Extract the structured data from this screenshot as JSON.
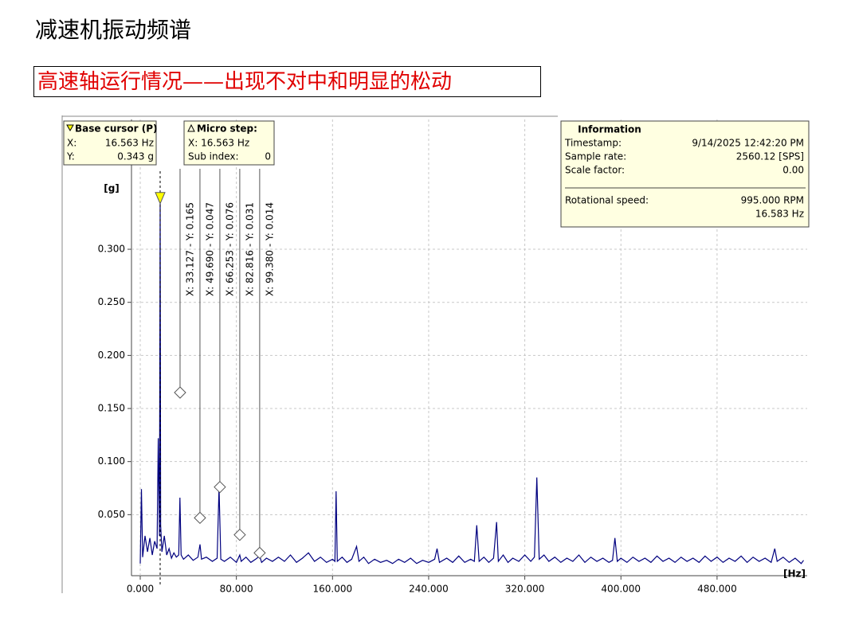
{
  "header": {
    "title": "减速机振动频谱",
    "subtitle": "高速轴运行情况——出现不对中和明显的松动"
  },
  "chart_data": {
    "type": "line",
    "y_label": "[g]",
    "x_label": "[Hz]",
    "xlim": [
      -7.3,
      555
    ],
    "ylim": [
      -0.0075,
      0.4223
    ],
    "xticks": [
      {
        "value": 0,
        "label": "0.000"
      },
      {
        "value": 80,
        "label": "80.000"
      },
      {
        "value": 160,
        "label": "160.000"
      },
      {
        "value": 240,
        "label": "240.000"
      },
      {
        "value": 320,
        "label": "320.000"
      },
      {
        "value": 400,
        "label": "400.000"
      },
      {
        "value": 480,
        "label": "480.000"
      }
    ],
    "yticks": [
      {
        "value": 0.05,
        "label": "0.050"
      },
      {
        "value": 0.1,
        "label": "0.100"
      },
      {
        "value": 0.15,
        "label": "0.150"
      },
      {
        "value": 0.2,
        "label": "0.200"
      },
      {
        "value": 0.25,
        "label": "0.250"
      },
      {
        "value": 0.3,
        "label": "0.300"
      }
    ],
    "grid": true,
    "series": [
      {
        "color": "#00007f",
        "x": [
          0,
          1,
          2,
          4,
          6,
          8,
          10,
          12,
          14,
          15,
          16,
          16.563,
          17,
          18,
          20,
          22,
          24,
          26,
          28,
          30,
          32,
          33,
          34,
          36,
          40,
          44,
          48,
          49.7,
          51,
          55,
          60,
          64,
          65.6,
          67,
          70,
          75,
          80,
          82.8,
          84,
          88,
          92,
          96,
          99.4,
          101,
          105,
          110,
          115,
          120,
          125,
          130,
          135,
          140,
          145,
          150,
          155,
          160,
          162,
          163,
          164,
          168,
          172,
          176,
          180,
          182,
          186,
          190,
          195,
          200,
          205,
          210,
          215,
          220,
          225,
          230,
          235,
          240,
          245,
          247,
          249,
          255,
          260,
          265,
          270,
          275,
          278,
          280,
          282,
          286,
          290,
          294,
          296.5,
          298,
          302,
          306,
          310,
          315,
          320,
          325,
          328,
          330,
          332,
          336,
          340,
          345,
          350,
          355,
          360,
          365,
          370,
          375,
          380,
          385,
          390,
          393,
          395,
          397,
          400,
          405,
          410,
          415,
          420,
          425,
          430,
          435,
          440,
          445,
          450,
          455,
          460,
          465,
          470,
          475,
          480,
          485,
          490,
          495,
          500,
          505,
          510,
          515,
          520,
          525,
          528,
          530,
          535,
          540,
          545,
          550,
          552
        ],
        "values": [
          0.004,
          0.074,
          0.01,
          0.03,
          0.015,
          0.028,
          0.012,
          0.025,
          0.018,
          0.122,
          0.03,
          0.343,
          0.04,
          0.015,
          0.03,
          0.012,
          0.018,
          0.009,
          0.014,
          0.01,
          0.012,
          0.066,
          0.012,
          0.008,
          0.012,
          0.007,
          0.01,
          0.022,
          0.008,
          0.01,
          0.006,
          0.009,
          0.076,
          0.008,
          0.006,
          0.01,
          0.005,
          0.012,
          0.006,
          0.01,
          0.005,
          0.008,
          0.011,
          0.005,
          0.009,
          0.006,
          0.01,
          0.006,
          0.012,
          0.005,
          0.009,
          0.014,
          0.006,
          0.01,
          0.005,
          0.008,
          0.006,
          0.072,
          0.006,
          0.01,
          0.005,
          0.008,
          0.02,
          0.006,
          0.01,
          0.004,
          0.008,
          0.005,
          0.007,
          0.004,
          0.008,
          0.005,
          0.009,
          0.004,
          0.007,
          0.005,
          0.008,
          0.018,
          0.005,
          0.009,
          0.005,
          0.011,
          0.005,
          0.008,
          0.006,
          0.04,
          0.006,
          0.01,
          0.005,
          0.009,
          0.043,
          0.006,
          0.012,
          0.005,
          0.009,
          0.006,
          0.012,
          0.006,
          0.01,
          0.085,
          0.008,
          0.012,
          0.006,
          0.01,
          0.005,
          0.009,
          0.006,
          0.012,
          0.005,
          0.01,
          0.006,
          0.009,
          0.005,
          0.007,
          0.028,
          0.006,
          0.009,
          0.005,
          0.01,
          0.006,
          0.009,
          0.005,
          0.011,
          0.006,
          0.009,
          0.005,
          0.01,
          0.006,
          0.009,
          0.005,
          0.011,
          0.006,
          0.01,
          0.005,
          0.009,
          0.006,
          0.011,
          0.005,
          0.01,
          0.006,
          0.009,
          0.005,
          0.018,
          0.006,
          0.01,
          0.005,
          0.009,
          0.004,
          0.007
        ]
      }
    ],
    "base_cursor": {
      "title": "Base cursor (P)",
      "x_name": "X:",
      "y_name": "Y:",
      "x": {
        "value": 16.563,
        "label": "16.563 Hz"
      },
      "y": {
        "value": 0.343,
        "label": "0.343 g"
      },
      "color": "#ffff00"
    },
    "micro_step": {
      "title": "Micro step:",
      "x_text": "X: 16.563 Hz",
      "sub_index_name": "Sub index:",
      "sub_index": "0"
    },
    "harmonics": [
      {
        "x": 33.127,
        "y": 0.165,
        "label": "X: 33.127 - Y: 0.165"
      },
      {
        "x": 49.69,
        "y": 0.047,
        "label": "X: 49.690 - Y: 0.047"
      },
      {
        "x": 66.253,
        "y": 0.076,
        "label": "X: 66.253 - Y: 0.076"
      },
      {
        "x": 82.816,
        "y": 0.031,
        "label": "X: 82.816 - Y: 0.031"
      },
      {
        "x": 99.38,
        "y": 0.014,
        "label": "X: 99.380 - Y: 0.014"
      }
    ],
    "information": {
      "title": "Information",
      "rows": [
        {
          "name": "Timestamp:",
          "value": "9/14/2025 12:42:20 PM"
        },
        {
          "name": "Sample rate:",
          "value": "2560.12 [SPS]"
        },
        {
          "name": "Scale factor:",
          "value": "0.00"
        }
      ],
      "speed": {
        "name": "Rotational speed:",
        "values": [
          "995.000 RPM",
          "16.583 Hz"
        ]
      }
    }
  }
}
